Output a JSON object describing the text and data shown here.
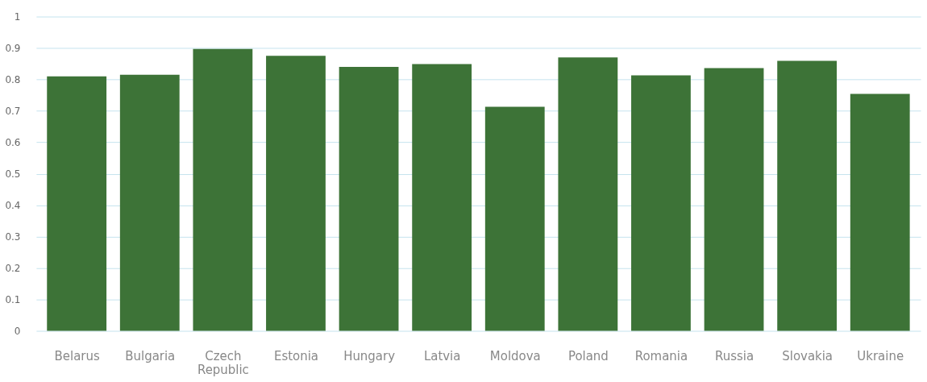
{
  "chart_data": {
    "type": "bar",
    "categories": [
      "Belarus",
      "Bulgaria",
      "Czech Republic",
      "Estonia",
      "Hungary",
      "Latvia",
      "Moldova",
      "Poland",
      "Romania",
      "Russia",
      "Slovakia",
      "Ukraine"
    ],
    "values": [
      0.81,
      0.815,
      0.897,
      0.875,
      0.84,
      0.849,
      0.713,
      0.87,
      0.813,
      0.836,
      0.859,
      0.754
    ],
    "color": "#3d7337",
    "ylim": [
      0,
      1
    ],
    "yticks": [
      0,
      0.1,
      0.2,
      0.3,
      0.4,
      0.5,
      0.6,
      0.7,
      0.8,
      0.9,
      1
    ],
    "grid": "y"
  }
}
